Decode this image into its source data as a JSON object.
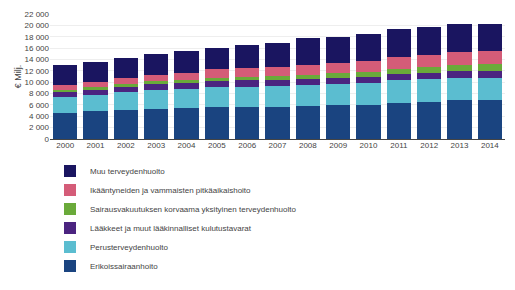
{
  "chart_data": {
    "type": "bar",
    "stacked": true,
    "categories": [
      "2000",
      "2001",
      "2002",
      "2003",
      "2004",
      "2005",
      "2006",
      "2007",
      "2008",
      "2009",
      "2010",
      "2011",
      "2012",
      "2013",
      "2014"
    ],
    "series": [
      {
        "name": "Erikoissairaanhoito",
        "color": "#1a4480",
        "values": [
          4600,
          4850,
          5100,
          5300,
          5450,
          5600,
          5700,
          5700,
          5850,
          5950,
          6050,
          6400,
          6600,
          6850,
          6850
        ]
      },
      {
        "name": "Perusterveydenhuolto",
        "color": "#5bbdd0",
        "values": [
          2800,
          2900,
          3100,
          3300,
          3300,
          3500,
          3500,
          3550,
          3600,
          3700,
          3750,
          3900,
          3950,
          3950,
          3950
        ]
      },
      {
        "name": "Lääkkeet ja muut lääkinnalliset kulutustavarat",
        "color": "#4b2480",
        "values": [
          900,
          950,
          1000,
          1050,
          1100,
          1100,
          1100,
          1100,
          1100,
          1100,
          1100,
          1150,
          1150,
          1200,
          1200
        ]
      },
      {
        "name": "Sairausvakuutuksen korvaama yksityinen terveydenhuolto",
        "color": "#6aaa3a",
        "values": [
          400,
          420,
          450,
          500,
          550,
          600,
          700,
          750,
          800,
          850,
          900,
          950,
          1050,
          1100,
          1150
        ]
      },
      {
        "name": "Ikääntyneiden ja vammaisten pitkäaikaishoito",
        "color": "#d45c78",
        "values": [
          850,
          1000,
          1100,
          1200,
          1300,
          1450,
          1550,
          1600,
          1700,
          1800,
          1900,
          2000,
          2100,
          2250,
          2300
        ]
      },
      {
        "name": "Muu terveydenhuolto",
        "color": "#1a1560",
        "values": [
          3450,
          3380,
          3450,
          3650,
          3800,
          3750,
          3950,
          4200,
          4650,
          4600,
          4800,
          4900,
          4850,
          4850,
          4850
        ]
      }
    ],
    "ylabel": "€ Milj.",
    "ylim": [
      0,
      22000
    ],
    "yticks": [
      0,
      {
        "value": 2000,
        "label": "2 000"
      },
      {
        "value": 4000,
        "label": "4 000"
      },
      {
        "value": 6000,
        "label": "6 000"
      },
      {
        "value": 8000,
        "label": "8 000"
      },
      {
        "value": 10000,
        "label": "10 000"
      },
      {
        "value": 12000,
        "label": "12 000"
      },
      {
        "value": 14000,
        "label": "14 000"
      },
      {
        "value": 16000,
        "label": "16 000"
      },
      {
        "value": 18000,
        "label": "18 000"
      },
      {
        "value": 20000,
        "label": "20 000"
      },
      {
        "value": 22000,
        "label": "22 000"
      }
    ],
    "grid": true,
    "legend": "bottom"
  }
}
